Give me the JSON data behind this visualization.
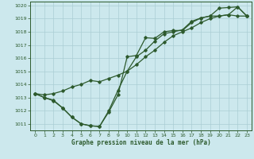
{
  "title": "Graphe pression niveau de la mer (hPa)",
  "bg_color": "#cce8ed",
  "grid_color": "#aacdd4",
  "line_color": "#2d5a2d",
  "x_min": 0,
  "x_max": 23,
  "y_min": 1011,
  "y_max": 1020,
  "y_lim_low": 1010.5,
  "y_lim_high": 1020.3,
  "series1": [
    [
      0,
      1013.3
    ],
    [
      1,
      1013.0
    ],
    [
      2,
      1012.8
    ],
    [
      3,
      1012.2
    ],
    [
      4,
      1011.5
    ],
    [
      5,
      1011.0
    ],
    [
      6,
      1010.85
    ],
    [
      7,
      1010.8
    ],
    [
      8,
      1011.9
    ],
    [
      9,
      1013.2
    ],
    [
      10,
      1016.1
    ],
    [
      11,
      1016.2
    ],
    [
      12,
      1017.55
    ],
    [
      13,
      1017.5
    ],
    [
      14,
      1018.0
    ],
    [
      15,
      1018.1
    ],
    [
      16,
      1018.1
    ],
    [
      17,
      1018.7
    ],
    [
      18,
      1019.05
    ],
    [
      19,
      1019.2
    ],
    [
      20,
      1019.8
    ],
    [
      21,
      1019.85
    ],
    [
      22,
      1019.9
    ],
    [
      23,
      1019.2
    ]
  ],
  "series2": [
    [
      0,
      1013.3
    ],
    [
      1,
      1013.0
    ],
    [
      2,
      1012.75
    ],
    [
      3,
      1012.2
    ],
    [
      4,
      1011.5
    ],
    [
      5,
      1011.0
    ],
    [
      6,
      1010.85
    ],
    [
      7,
      1010.8
    ],
    [
      8,
      1012.0
    ],
    [
      9,
      1013.55
    ],
    [
      10,
      1015.0
    ],
    [
      11,
      1016.1
    ],
    [
      12,
      1016.6
    ],
    [
      13,
      1017.3
    ],
    [
      14,
      1017.85
    ],
    [
      15,
      1018.0
    ],
    [
      16,
      1018.15
    ],
    [
      17,
      1018.8
    ],
    [
      18,
      1019.05
    ],
    [
      19,
      1019.2
    ],
    [
      20,
      1019.2
    ],
    [
      21,
      1019.3
    ],
    [
      22,
      1019.9
    ],
    [
      23,
      1019.2
    ]
  ],
  "series3": [
    [
      0,
      1013.3
    ],
    [
      1,
      1013.2
    ],
    [
      2,
      1013.3
    ],
    [
      3,
      1013.5
    ],
    [
      4,
      1013.8
    ],
    [
      5,
      1014.0
    ],
    [
      6,
      1014.3
    ],
    [
      7,
      1014.2
    ],
    [
      8,
      1014.45
    ],
    [
      9,
      1014.7
    ],
    [
      10,
      1015.0
    ],
    [
      11,
      1015.5
    ],
    [
      12,
      1016.1
    ],
    [
      13,
      1016.6
    ],
    [
      14,
      1017.2
    ],
    [
      15,
      1017.7
    ],
    [
      16,
      1018.0
    ],
    [
      17,
      1018.3
    ],
    [
      18,
      1018.7
    ],
    [
      19,
      1019.0
    ],
    [
      20,
      1019.2
    ],
    [
      21,
      1019.3
    ],
    [
      22,
      1019.2
    ],
    [
      23,
      1019.2
    ]
  ]
}
